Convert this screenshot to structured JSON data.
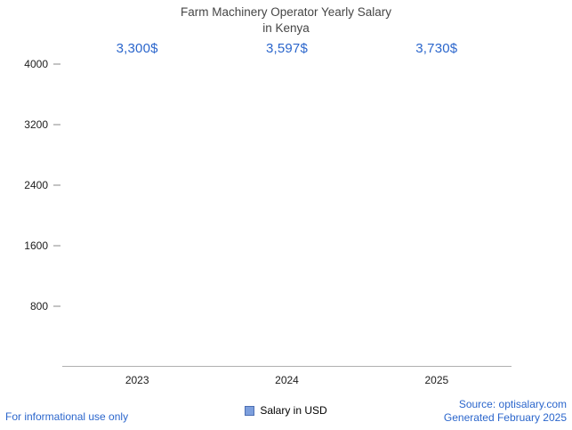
{
  "title": {
    "line1": "Farm Machinery Operator Yearly Salary",
    "line2": "in Kenya"
  },
  "chart_data": {
    "type": "bar",
    "title": "Farm Machinery Operator Yearly Salary in Kenya",
    "categories": [
      "2023",
      "2024",
      "2025"
    ],
    "values": [
      3300,
      3597,
      3730
    ],
    "value_labels": [
      "3,300$",
      "3,597$",
      "3,730$"
    ],
    "xlabel": "",
    "ylabel": "",
    "ylim": [
      0,
      4000
    ],
    "yticks": [
      800,
      1600,
      2400,
      3200,
      4000
    ],
    "grid": false,
    "legend": {
      "label": "Salary in USD",
      "position": "bottom"
    },
    "bar_color_edge": "#6b99ea",
    "bar_color_center": "#ffffff"
  },
  "footer": {
    "left": "For informational use only",
    "source": "Source: optisalary.com",
    "generated": "Generated February 2025"
  },
  "colors": {
    "accent_blue": "#2b66cc",
    "title_gray": "#454545",
    "axis_gray": "#b0b0b0"
  }
}
